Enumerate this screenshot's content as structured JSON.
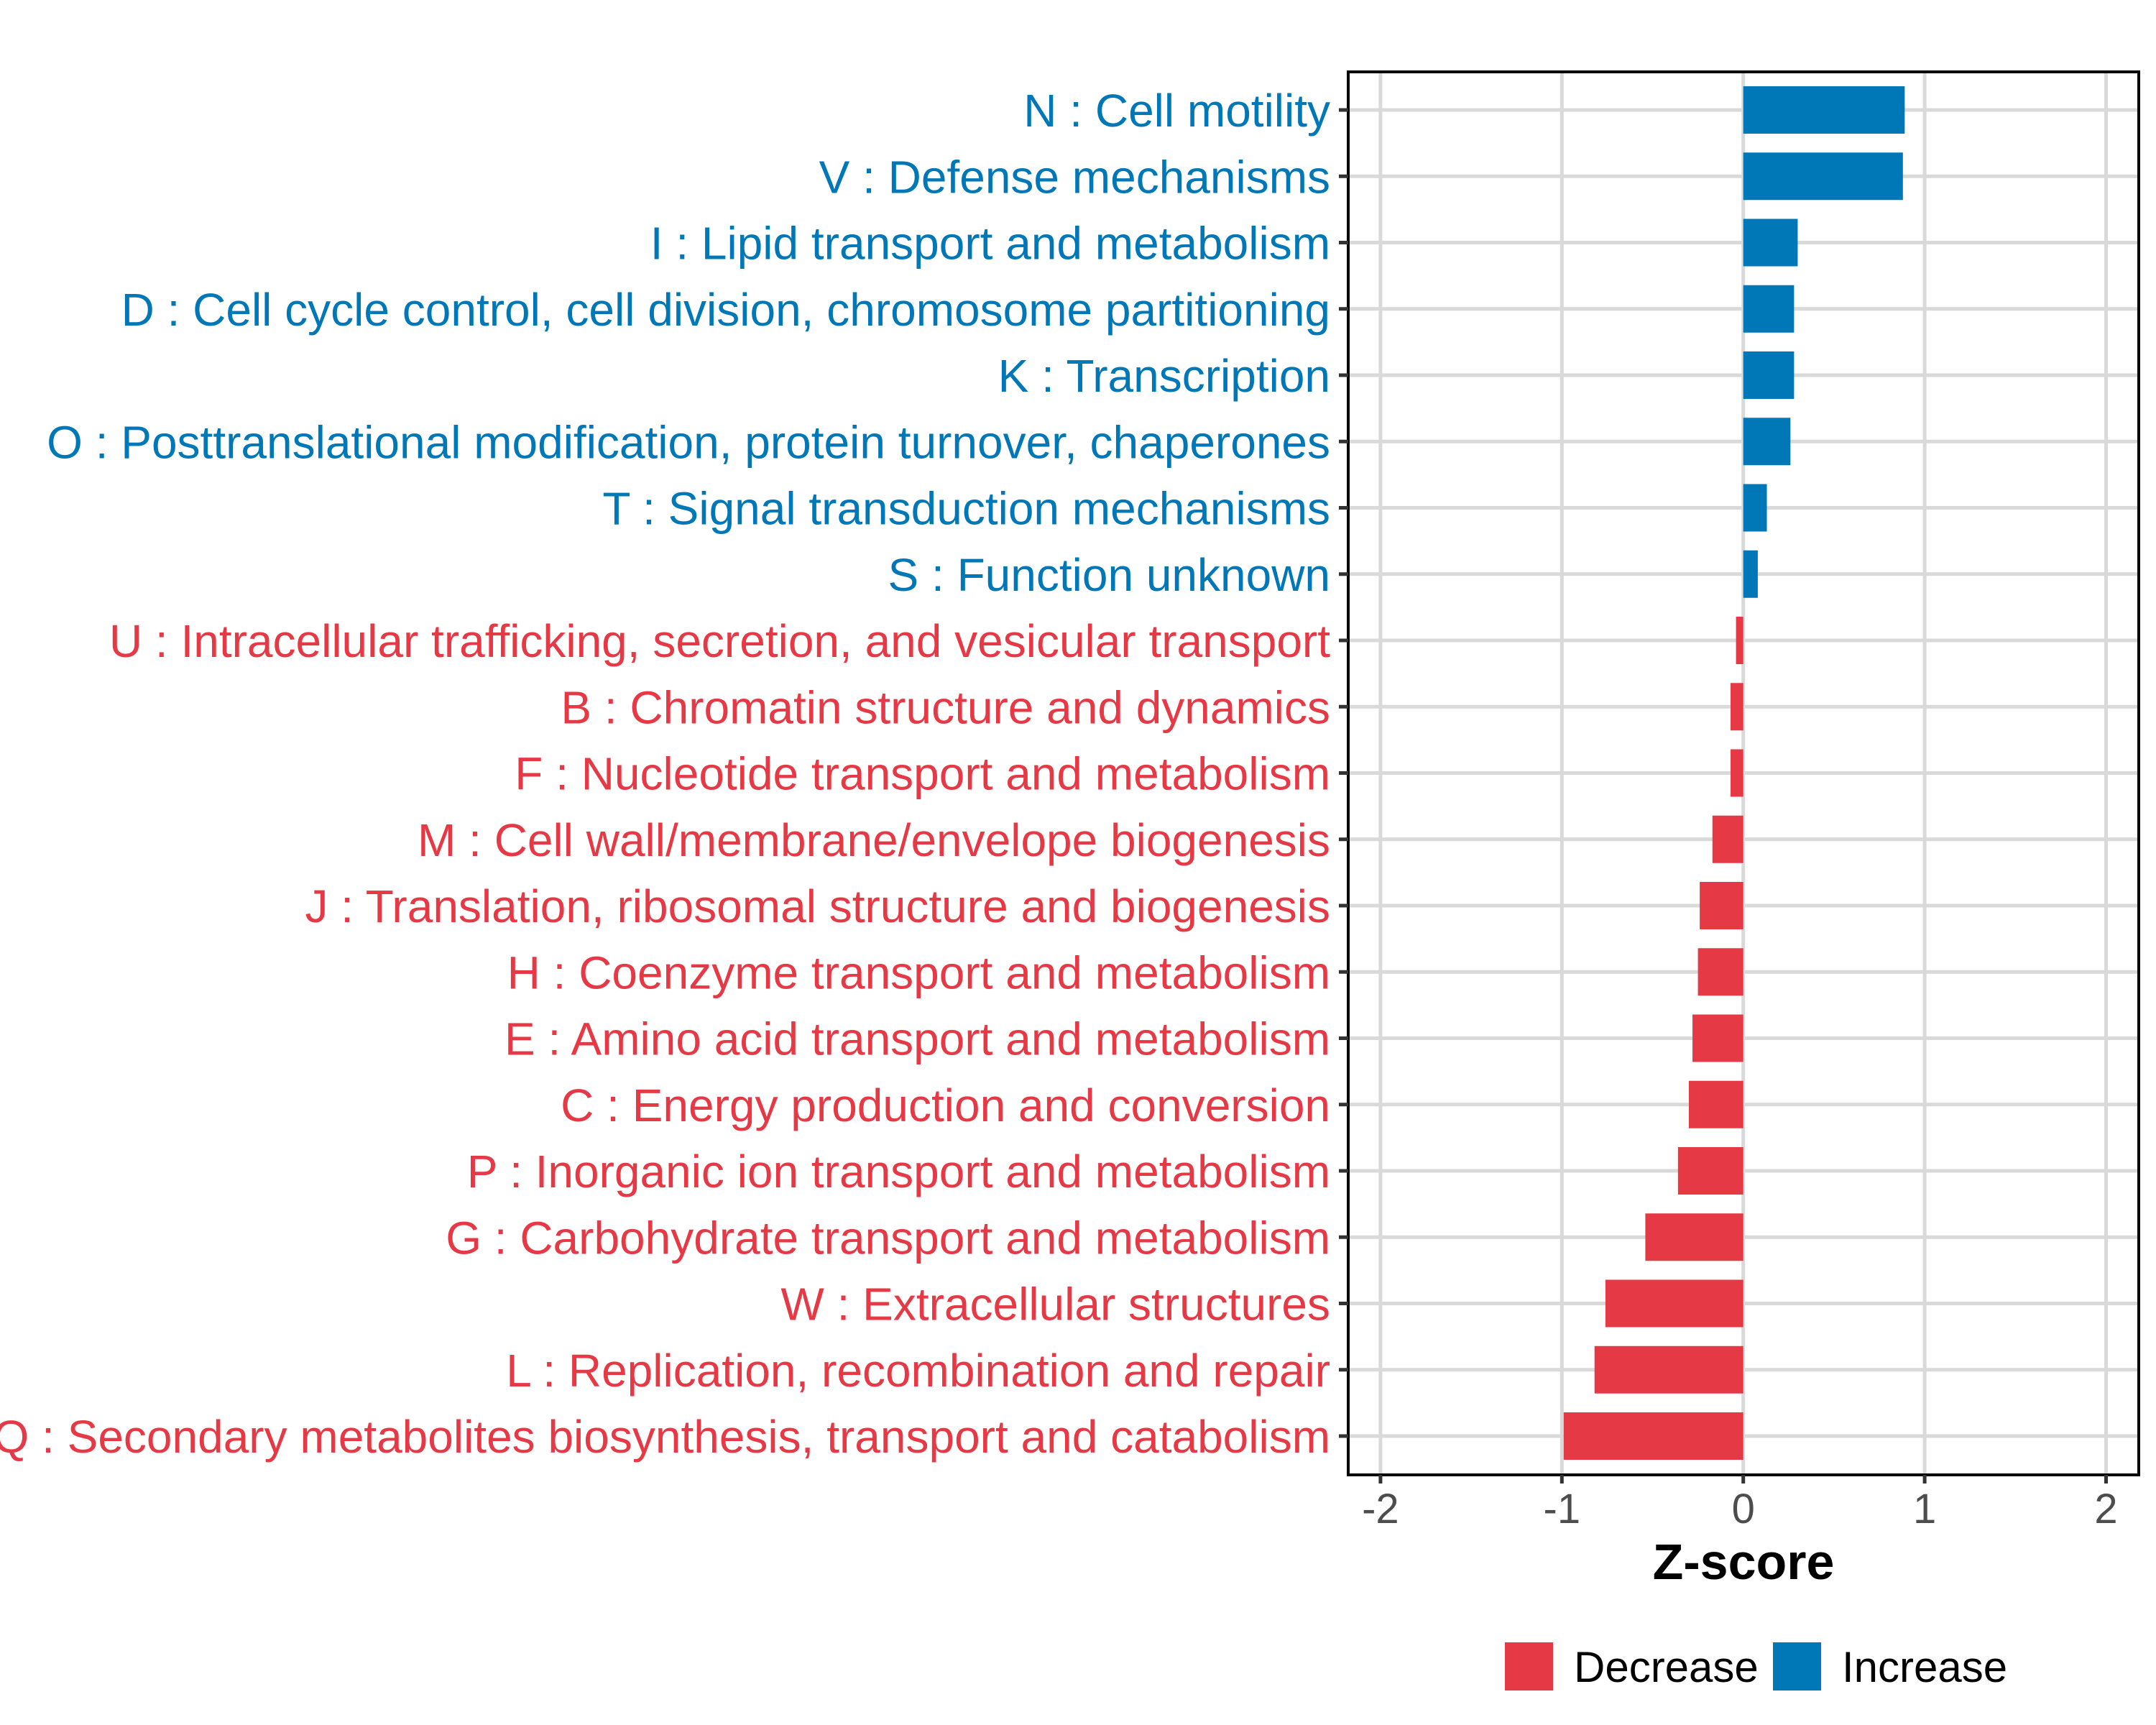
{
  "chart_data": {
    "type": "bar",
    "orientation": "horizontal",
    "title": "",
    "xlabel": "Z-score",
    "ylabel": "",
    "xlim": [
      -2.2,
      2.2
    ],
    "x_ticks": [
      -2,
      -1,
      0,
      1,
      2
    ],
    "x_tick_labels": [
      "-2",
      "-1",
      "0",
      "1",
      "2"
    ],
    "grid": true,
    "legend": {
      "position": "bottom",
      "entries": [
        {
          "name": "Decrease",
          "color": "#E63946"
        },
        {
          "name": "Increase",
          "color": "#0077B6"
        }
      ]
    },
    "categories": [
      "N : Cell motility",
      "V : Defense mechanisms",
      "I : Lipid transport and metabolism",
      "D : Cell cycle control, cell division, chromosome partitioning",
      "K : Transcription",
      "O : Posttranslational modification, protein turnover, chaperones",
      "T : Signal transduction mechanisms",
      "S : Function unknown",
      "U : Intracellular trafficking, secretion, and vesicular transport",
      "B : Chromatin structure and dynamics",
      "F : Nucleotide transport and metabolism",
      "M : Cell wall/membrane/envelope biogenesis",
      "J : Translation, ribosomal structure and biogenesis",
      "H : Coenzyme transport and metabolism",
      "E : Amino acid transport and metabolism",
      "C : Energy production and conversion",
      "P : Inorganic ion transport and metabolism",
      "G : Carbohydrate transport and metabolism",
      "W : Extracellular structures",
      "L : Replication, recombination and repair",
      "Q : Secondary metabolites biosynthesis, transport and catabolism"
    ],
    "values": [
      0.89,
      0.88,
      0.3,
      0.28,
      0.28,
      0.26,
      0.13,
      0.08,
      -0.04,
      -0.07,
      -0.07,
      -0.17,
      -0.24,
      -0.25,
      -0.28,
      -0.3,
      -0.36,
      -0.54,
      -0.76,
      -0.82,
      -0.99
    ],
    "groups": [
      "Increase",
      "Increase",
      "Increase",
      "Increase",
      "Increase",
      "Increase",
      "Increase",
      "Increase",
      "Decrease",
      "Decrease",
      "Decrease",
      "Decrease",
      "Decrease",
      "Decrease",
      "Decrease",
      "Decrease",
      "Decrease",
      "Decrease",
      "Decrease",
      "Decrease",
      "Decrease"
    ]
  },
  "colors": {
    "Increase": "#0077B6",
    "Decrease": "#E63946"
  }
}
